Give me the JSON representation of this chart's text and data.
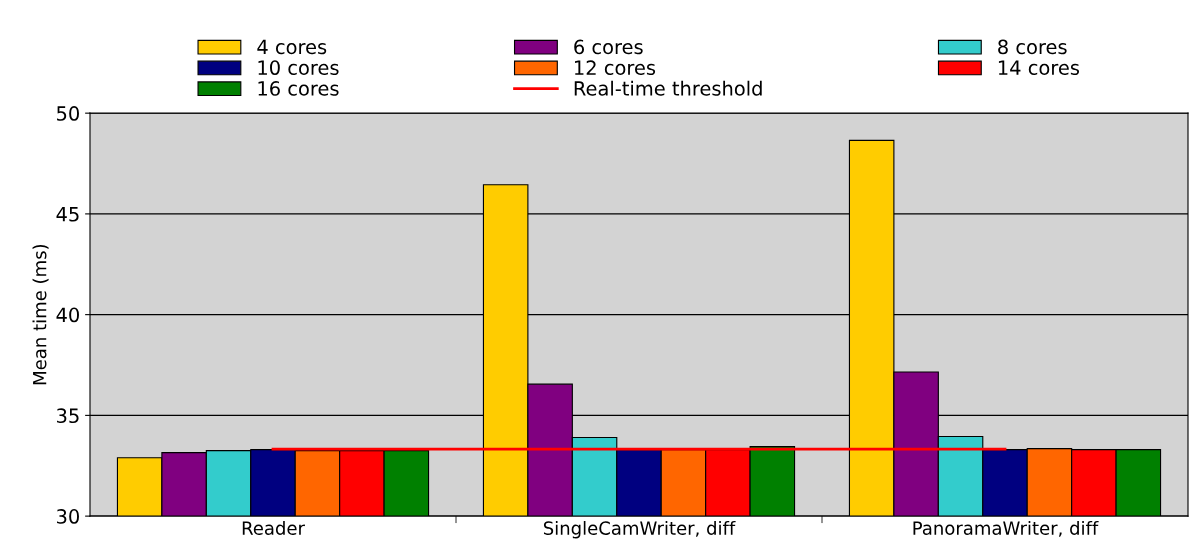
{
  "chart_data": {
    "type": "bar",
    "ylabel": "Mean time (ms)",
    "categories": [
      "Reader",
      "SingleCamWriter, diff",
      "PanoramaWriter, diff"
    ],
    "series": [
      {
        "name": "4 cores",
        "color": "#ffcc00",
        "values": [
          32.9,
          46.45,
          48.65
        ]
      },
      {
        "name": "6 cores",
        "color": "#800080",
        "values": [
          33.15,
          36.55,
          37.15
        ]
      },
      {
        "name": "8 cores",
        "color": "#33cccc",
        "values": [
          33.25,
          33.9,
          33.95
        ]
      },
      {
        "name": "10 cores",
        "color": "#000080",
        "values": [
          33.3,
          33.3,
          33.3
        ]
      },
      {
        "name": "12 cores",
        "color": "#ff6600",
        "values": [
          33.25,
          33.3,
          33.35
        ]
      },
      {
        "name": "14 cores",
        "color": "#ff0000",
        "values": [
          33.25,
          33.3,
          33.3
        ]
      },
      {
        "name": "16 cores",
        "color": "#008000",
        "values": [
          33.25,
          33.45,
          33.3
        ]
      },
      {
        "name": "Real-time threshold",
        "type": "line",
        "color": "#ff0000",
        "values": [
          33.33,
          33.33,
          33.33
        ]
      }
    ],
    "ylim": [
      30,
      50
    ],
    "yticks": [
      30,
      35,
      40,
      45,
      50
    ],
    "grid": "y",
    "legend": "top"
  }
}
